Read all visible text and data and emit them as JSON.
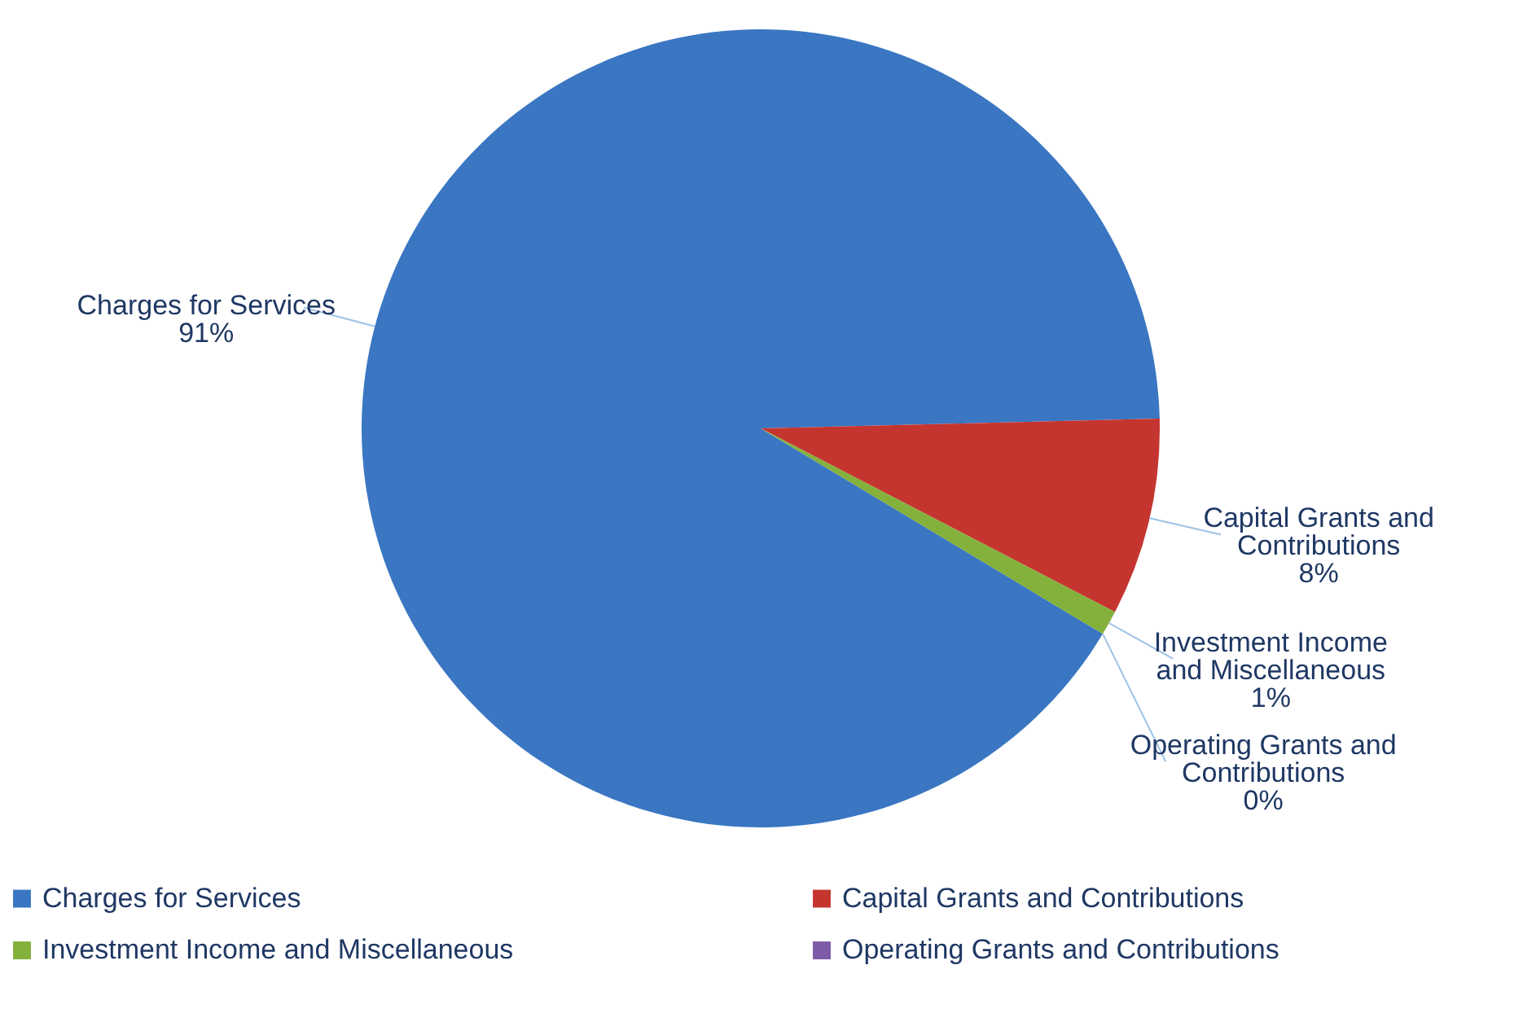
{
  "chart_data": {
    "type": "pie",
    "categories": [
      "Charges for Services",
      "Capital Grants and Contributions",
      "Investment Income and Miscellaneous",
      "Operating Grants and Contributions"
    ],
    "values": [
      91,
      8,
      1,
      0
    ],
    "value_labels": [
      "91%",
      "8%",
      "1%",
      "0%"
    ],
    "colors": [
      "#3a76c2",
      "#c5352f",
      "#84b03c",
      "#7d5ba6"
    ],
    "legend": "bottom"
  }
}
